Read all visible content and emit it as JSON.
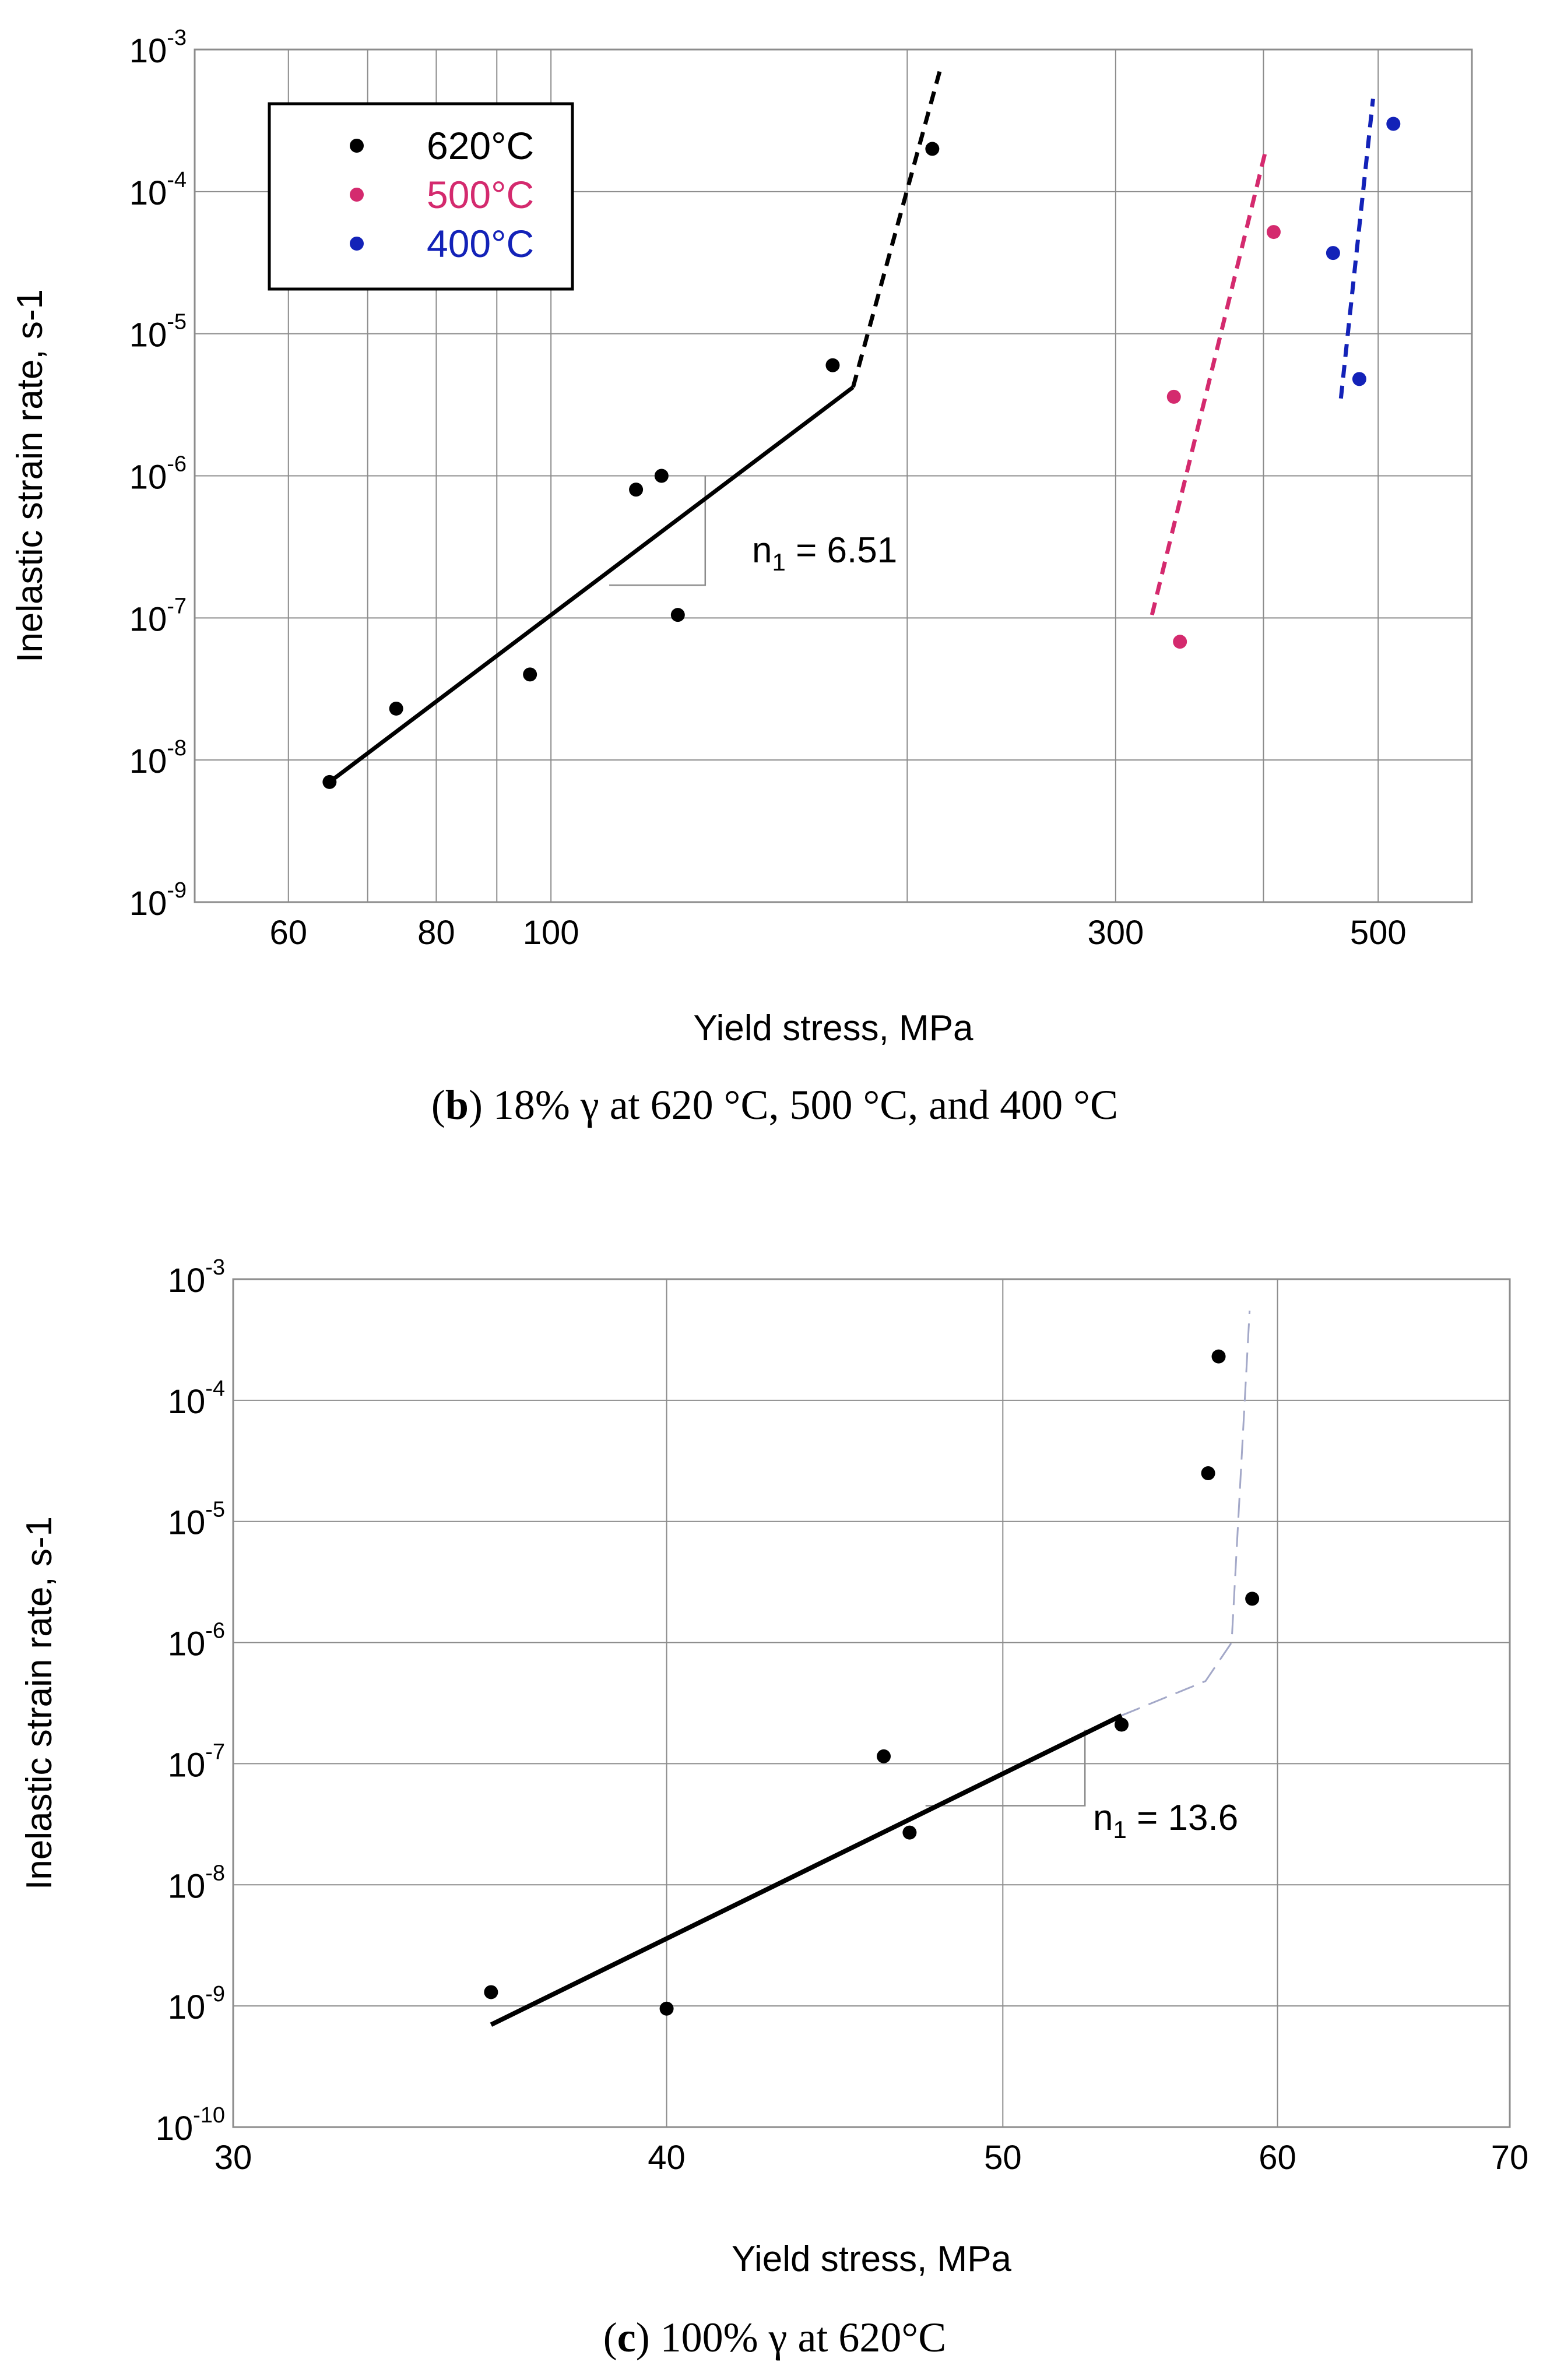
{
  "chart_data": [
    {
      "panel": "b",
      "type": "scatter",
      "xscale": "log",
      "yscale": "log",
      "xlim": [
        50,
        600
      ],
      "ylim": [
        1e-09,
        0.001
      ],
      "xticks": [
        60,
        80,
        100,
        300,
        500
      ],
      "xtick_labels": [
        "60",
        "80",
        "100",
        "300",
        "500"
      ],
      "xgrid": [
        60,
        70,
        80,
        90,
        100,
        200,
        300,
        400,
        500
      ],
      "ytick_exponents": [
        -3,
        -4,
        -5,
        -6,
        -7,
        -8,
        -9
      ],
      "xlabel": "Yield stress, MPa",
      "ylabel": "Inelastic strain rate, s-1",
      "legend_position": "top-left",
      "series": [
        {
          "name": "620°C",
          "color": "#000000",
          "points": [
            [
              65,
              7e-09
            ],
            [
              74,
              2.3e-08
            ],
            [
              96,
              4e-08
            ],
            [
              118,
              8e-07
            ],
            [
              124,
              1e-06
            ],
            [
              128,
              1.05e-07
            ],
            [
              173,
              6e-06
            ],
            [
              210,
              0.0002
            ]
          ],
          "fit_solid": [
            [
              65,
              7e-09
            ],
            [
              180,
              4.2e-06
            ]
          ],
          "fit_dashed": [
            [
              180,
              4.2e-06
            ],
            [
              213,
              0.0007
            ]
          ]
        },
        {
          "name": "500°C",
          "color": "#d42a6e",
          "points": [
            [
              336,
              3.6e-06
            ],
            [
              340,
              6.8e-08
            ],
            [
              408,
              5.2e-05
            ]
          ],
          "fit_dashed": [
            [
              322,
              1.05e-07
            ],
            [
              402,
              0.0002
            ]
          ]
        },
        {
          "name": "400°C",
          "color": "#1322b8",
          "points": [
            [
              458,
              3.7e-05
            ],
            [
              482,
              4.8e-06
            ],
            [
              515,
              0.0003
            ]
          ],
          "fit_dashed": [
            [
              465,
              3.5e-06
            ],
            [
              495,
              0.00045
            ]
          ]
        }
      ],
      "slope_triangle": {
        "x": [
          112,
          135
        ],
        "y": [
          1.7e-07,
          1e-06
        ]
      },
      "annotation": {
        "prefix": "n",
        "sub": "1",
        "text": " = 6.51"
      },
      "caption": {
        "bold": "b",
        "text": ") 18% γ at 620 °C, 500 °C, and 400 °C"
      }
    },
    {
      "panel": "c",
      "type": "scatter",
      "xscale": "log",
      "yscale": "log",
      "xlim": [
        30,
        70
      ],
      "ylim": [
        1e-10,
        0.001
      ],
      "xticks": [
        30,
        40,
        50,
        60,
        70
      ],
      "xtick_labels": [
        "30",
        "40",
        "50",
        "60",
        "70"
      ],
      "xgrid": [
        40,
        50,
        60
      ],
      "ytick_exponents": [
        -3,
        -4,
        -5,
        -6,
        -7,
        -8,
        -9,
        -10
      ],
      "xlabel": "Yield stress, MPa",
      "ylabel": "Inelastic strain rate, s-1",
      "series": [
        {
          "name": "620°C",
          "color": "#000000",
          "points": [
            [
              35.6,
              1.3e-09
            ],
            [
              40,
              9.5e-10
            ],
            [
              46.2,
              1.15e-07
            ],
            [
              47,
              2.7e-08
            ],
            [
              54.1,
              2.1e-07
            ],
            [
              57.3,
              2.5e-05
            ],
            [
              57.7,
              0.00023
            ],
            [
              59,
              2.3e-06
            ]
          ],
          "fit_solid": [
            [
              35.6,
              7e-10
            ],
            [
              54.1,
              2.5e-07
            ]
          ],
          "fit_dashed": [
            [
              54.1,
              2.5e-07
            ],
            [
              57.2,
              4.8e-07
            ],
            [
              58.2,
              1e-06
            ],
            [
              58.9,
              0.00055
            ]
          ]
        }
      ],
      "slope_triangle": {
        "x": [
          47.5,
          52.8
        ],
        "y": [
          4.5e-08,
          1.9e-07
        ]
      },
      "annotation": {
        "prefix": "n",
        "sub": "1",
        "text": " = 13.6"
      },
      "caption": {
        "bold": "c",
        "text": ") 100% γ at 620°C"
      }
    }
  ]
}
